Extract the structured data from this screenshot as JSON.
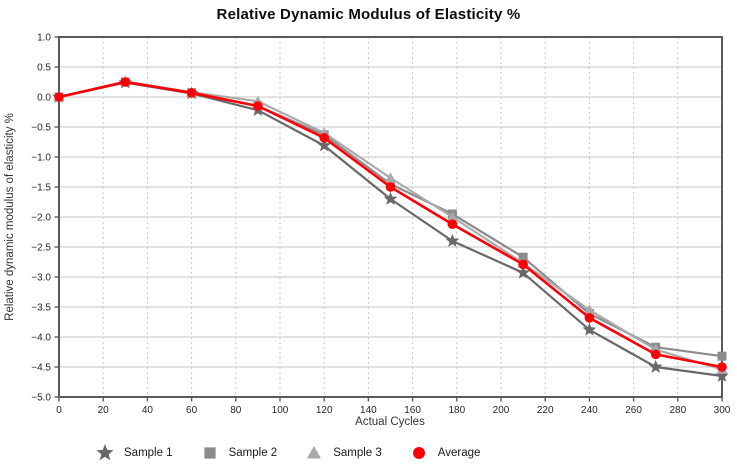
{
  "title": "Relative Dynamic Modulus of Elasticity %",
  "chart_data": {
    "type": "line",
    "title": "Relative Dynamic Modulus of Elasticity %",
    "xlabel": "Actual Cycles",
    "ylabel": "Relative dynamic modulus of elasticity %",
    "xlim": [
      0,
      300
    ],
    "ylim": [
      -5.0,
      1.0
    ],
    "xticks": [
      0,
      20,
      40,
      60,
      80,
      100,
      120,
      140,
      160,
      180,
      200,
      220,
      240,
      260,
      280,
      300
    ],
    "yticks": [
      1.0,
      0.5,
      0.0,
      -0.5,
      -1.0,
      -1.5,
      -2.0,
      -2.5,
      -3.0,
      -3.5,
      -4.0,
      -4.5,
      -5.0
    ],
    "ytick_labels": [
      "1.0",
      "0.5",
      "0.0",
      "−0.5",
      "−1.0",
      "−1.5",
      "−2.0",
      "−2.5",
      "−3.0",
      "−3.5",
      "−4.0",
      "−4.5",
      "−5.0"
    ],
    "grid": {
      "horizontal": "solid",
      "vertical": "dashed",
      "visible": true
    },
    "legend_position": "bottom-left",
    "x": [
      0,
      30,
      60,
      90,
      120,
      150,
      178,
      210,
      240,
      270,
      300
    ],
    "series": [
      {
        "name": "Sample 1",
        "marker": "star",
        "color": "#686868",
        "values": [
          0.0,
          0.24,
          0.06,
          -0.22,
          -0.81,
          -1.7,
          -2.4,
          -2.93,
          -3.88,
          -4.5,
          -4.65
        ]
      },
      {
        "name": "Sample 2",
        "marker": "square",
        "color": "#8c8c8c",
        "values": [
          0.0,
          0.25,
          0.07,
          -0.15,
          -0.63,
          -1.45,
          -1.95,
          -2.67,
          -3.61,
          -4.17,
          -4.32
        ]
      },
      {
        "name": "Sample 3",
        "marker": "triangle",
        "color": "#aaaaaa",
        "values": [
          0.0,
          0.26,
          0.08,
          -0.07,
          -0.6,
          -1.35,
          -2.0,
          -2.77,
          -3.55,
          -4.21,
          -4.54
        ]
      },
      {
        "name": "Average",
        "marker": "circle",
        "color": "#fb0007",
        "values": [
          0.0,
          0.25,
          0.07,
          -0.15,
          -0.68,
          -1.5,
          -2.12,
          -2.79,
          -3.68,
          -4.29,
          -4.5
        ]
      }
    ],
    "style": {
      "grid_color": "#c6c6c6",
      "spine_color": "#5a5a5a",
      "tick_label_color": "#262626",
      "axis_label_color": "#333333",
      "background": "#ffffff"
    }
  }
}
